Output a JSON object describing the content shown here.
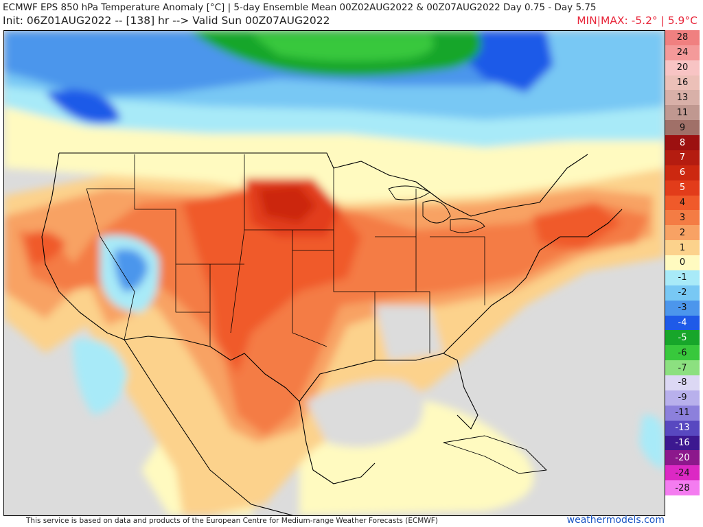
{
  "header": {
    "title": "ECMWF EPS 850 hPa Temperature Anomaly [°C] | 5-day Ensemble Mean 00Z02AUG2022 & 00Z07AUG2022  Day 0.75 - Day 5.75",
    "init_line": "Init: 06Z01AUG2022 -- [138] hr --> Valid Sun 00Z07AUG2022",
    "minmax": "MIN|MAX: -5.2° | 5.9°C"
  },
  "legend": {
    "units": "°C",
    "items": [
      {
        "label": "28",
        "color": "#f08080"
      },
      {
        "label": "24",
        "color": "#f49a9a"
      },
      {
        "label": "20",
        "color": "#f8c4c4"
      },
      {
        "label": "16",
        "color": "#ecc0b8"
      },
      {
        "label": "13",
        "color": "#d8b0a8"
      },
      {
        "label": "11",
        "color": "#c09890"
      },
      {
        "label": "9",
        "color": "#a07068"
      },
      {
        "label": "8",
        "color": "#9c1010"
      },
      {
        "label": "7",
        "color": "#b41c10"
      },
      {
        "label": "6",
        "color": "#cc2810"
      },
      {
        "label": "5",
        "color": "#e23c1a"
      },
      {
        "label": "4",
        "color": "#f05a2a"
      },
      {
        "label": "3",
        "color": "#f47c44"
      },
      {
        "label": "2",
        "color": "#f8a264"
      },
      {
        "label": "1",
        "color": "#fcd28c"
      },
      {
        "label": "0",
        "color": "#fffac0"
      },
      {
        "label": "-1",
        "color": "#a8eaf8"
      },
      {
        "label": "-2",
        "color": "#78c8f4"
      },
      {
        "label": "-3",
        "color": "#4c96ec"
      },
      {
        "label": "-4",
        "color": "#1e5ae8"
      },
      {
        "label": "-5",
        "color": "#17a62a"
      },
      {
        "label": "-6",
        "color": "#38c83c"
      },
      {
        "label": "-7",
        "color": "#8ce080"
      },
      {
        "label": "-8",
        "color": "#dcd8f4"
      },
      {
        "label": "-9",
        "color": "#b8b0ec"
      },
      {
        "label": "-11",
        "color": "#8c80dc"
      },
      {
        "label": "-13",
        "color": "#5848c0"
      },
      {
        "label": "-16",
        "color": "#3c1890"
      },
      {
        "label": "-20",
        "color": "#8c188c"
      },
      {
        "label": "-24",
        "color": "#dc28c4"
      },
      {
        "label": "-28",
        "color": "#f47cf0"
      }
    ]
  },
  "map": {
    "colors": {
      "background": "#dcdcdc",
      "pale_yellow": "#fffac0",
      "light_orange": "#fcd28c",
      "orange_2": "#f8a264",
      "orange_3": "#f47c44",
      "orange_4": "#f05a2a",
      "red_5": "#e23c1a",
      "dark_red_6": "#cc2810",
      "light_cyan": "#a8eaf8",
      "light_blue": "#78c8f4",
      "blue": "#4c96ec",
      "deep_blue": "#1e5ae8",
      "green": "#17a62a",
      "light_green": "#38c83c"
    }
  },
  "footer": {
    "credit": "This service is based on data and products of the European Centre for Medium-range Weather Forecasts (ECMWF)",
    "brand": "weathermodels.com"
  }
}
